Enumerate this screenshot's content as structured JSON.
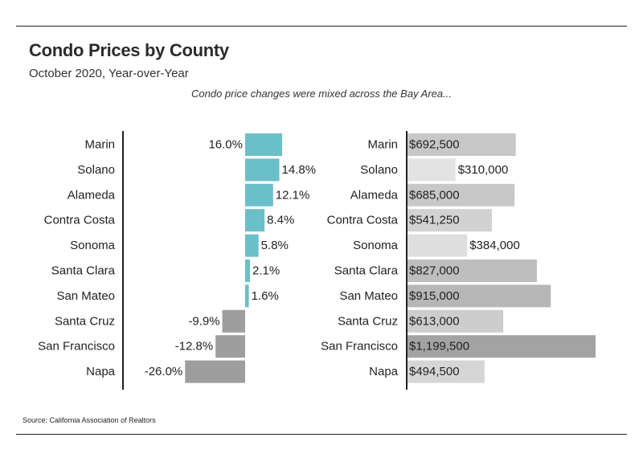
{
  "header": {
    "title": "Condo Prices by County",
    "subtitle": "October 2020, Year-over-Year",
    "note": "Condo price changes were mixed across the Bay Area...",
    "source": "Source:  California Association of Realtors"
  },
  "colors": {
    "positive": "#6bbfc9",
    "negative": "#9e9e9e",
    "price_light": "#e3e3e3",
    "price_dark": "#a3a3a3",
    "axis": "#222222"
  },
  "chart_data": [
    {
      "type": "bar",
      "orientation": "horizontal",
      "categories": [
        "Marin",
        "Solano",
        "Alameda",
        "Contra Costa",
        "Sonoma",
        "Santa Clara",
        "San Mateo",
        "Santa Cruz",
        "San Francisco",
        "Napa"
      ],
      "values": [
        16.0,
        14.8,
        12.1,
        8.4,
        5.8,
        2.1,
        1.6,
        -9.9,
        -12.8,
        -26.0
      ],
      "labels": [
        "16.0%",
        "14.8%",
        "12.1%",
        "8.4%",
        "5.8%",
        "2.1%",
        "1.6%",
        "-9.9%",
        "-12.8%",
        "-26.0%"
      ]
    },
    {
      "type": "bar",
      "orientation": "horizontal",
      "categories": [
        "Marin",
        "Solano",
        "Alameda",
        "Contra Costa",
        "Sonoma",
        "Santa Clara",
        "San Mateo",
        "Santa Cruz",
        "San Francisco",
        "Napa"
      ],
      "values": [
        692500,
        310000,
        685000,
        541250,
        384000,
        827000,
        915000,
        613000,
        1199500,
        494500
      ],
      "labels": [
        "$692,500",
        "$310,000",
        "$685,000",
        "$541,250",
        "$384,000",
        "$827,000",
        "$915,000",
        "$613,000",
        "$1,199,500",
        "$494,500"
      ]
    }
  ]
}
